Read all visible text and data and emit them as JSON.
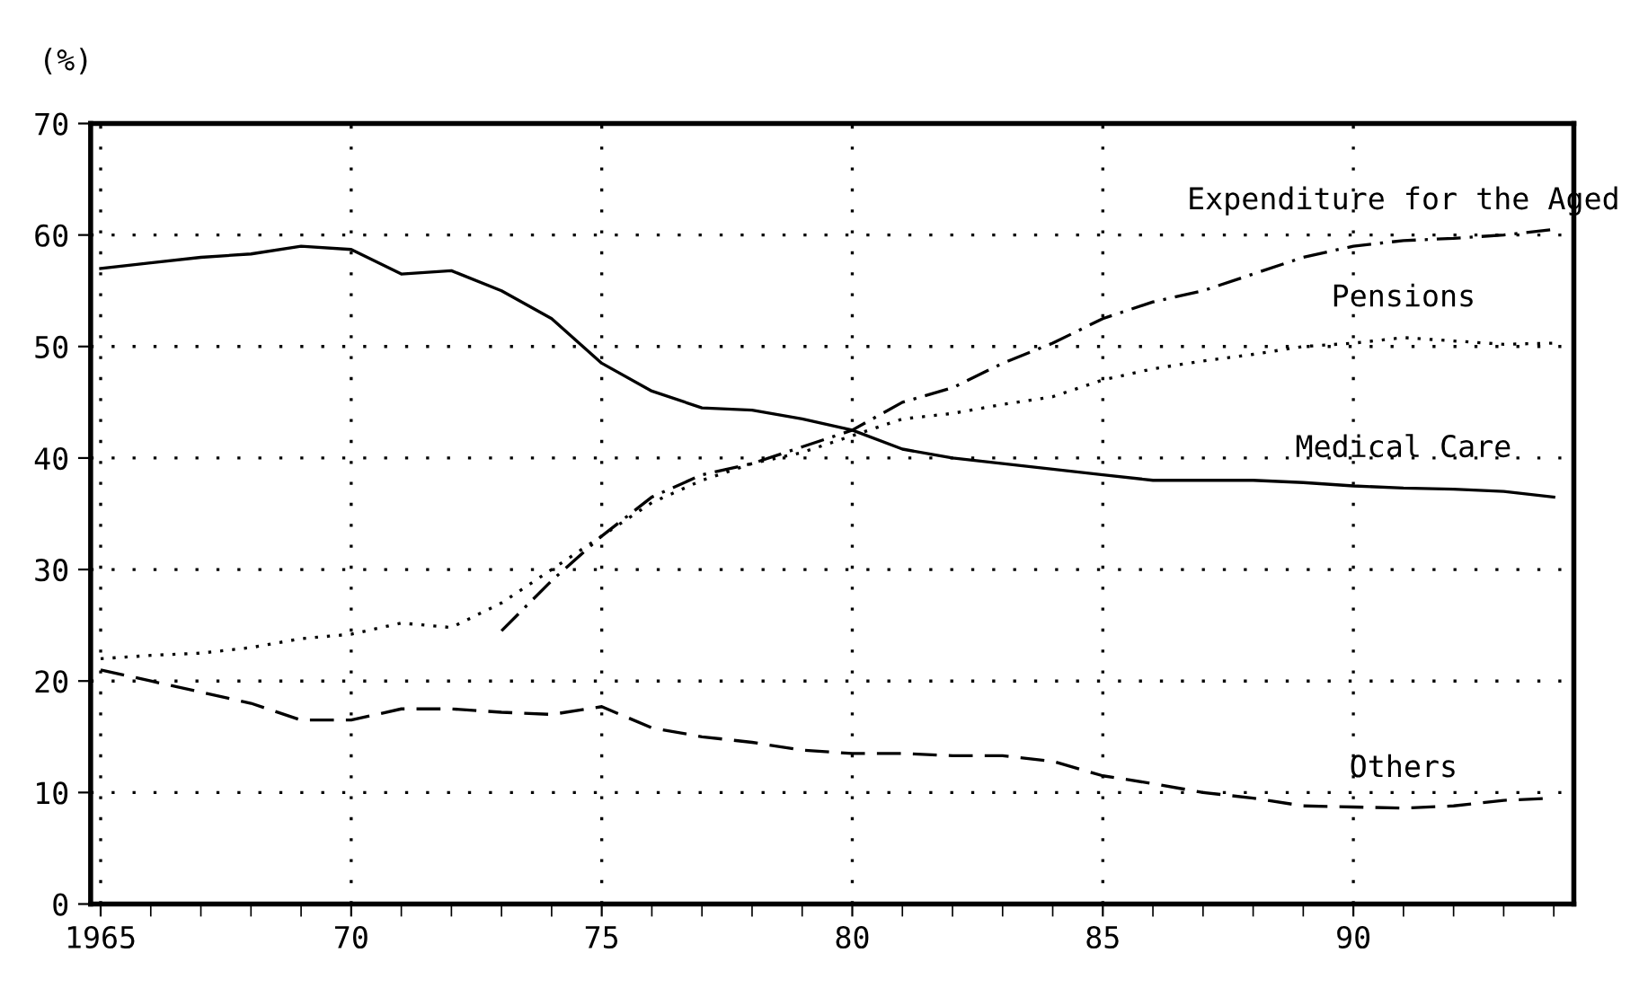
{
  "chart_data": {
    "type": "line",
    "ylabel": "(%)",
    "xlim": [
      1964.8,
      1994.4
    ],
    "ylim": [
      0,
      70
    ],
    "xticks": [
      {
        "value": 1965,
        "label": "1965"
      },
      {
        "value": 1966,
        "label": null
      },
      {
        "value": 1967,
        "label": null
      },
      {
        "value": 1968,
        "label": null
      },
      {
        "value": 1969,
        "label": null
      },
      {
        "value": 1970,
        "label": "70"
      },
      {
        "value": 1971,
        "label": null
      },
      {
        "value": 1972,
        "label": null
      },
      {
        "value": 1973,
        "label": null
      },
      {
        "value": 1974,
        "label": null
      },
      {
        "value": 1975,
        "label": "75"
      },
      {
        "value": 1976,
        "label": null
      },
      {
        "value": 1977,
        "label": null
      },
      {
        "value": 1978,
        "label": null
      },
      {
        "value": 1979,
        "label": null
      },
      {
        "value": 1980,
        "label": "80"
      },
      {
        "value": 1981,
        "label": null
      },
      {
        "value": 1982,
        "label": null
      },
      {
        "value": 1983,
        "label": null
      },
      {
        "value": 1984,
        "label": null
      },
      {
        "value": 1985,
        "label": "85"
      },
      {
        "value": 1986,
        "label": null
      },
      {
        "value": 1987,
        "label": null
      },
      {
        "value": 1988,
        "label": null
      },
      {
        "value": 1989,
        "label": null
      },
      {
        "value": 1990,
        "label": "90"
      },
      {
        "value": 1991,
        "label": null
      },
      {
        "value": 1992,
        "label": null
      },
      {
        "value": 1993,
        "label": null
      },
      {
        "value": 1994,
        "label": null
      }
    ],
    "yticks": [
      0,
      10,
      20,
      30,
      40,
      50,
      60,
      70
    ],
    "grid": true,
    "legend": false,
    "marker": "none",
    "series": [
      {
        "name": "Expenditure for the Aged",
        "color": "#000000",
        "line_style": "dashdot",
        "x": [
          1973,
          1974,
          1975,
          1976,
          1977,
          1978,
          1979,
          1980,
          1981,
          1982,
          1983,
          1984,
          1985,
          1986,
          1987,
          1988,
          1989,
          1990,
          1991,
          1992,
          1993,
          1994
        ],
        "values": [
          24.5,
          29,
          33,
          36.5,
          38.5,
          39.5,
          41,
          42.5,
          45,
          46.3,
          48.5,
          50.3,
          52.5,
          54,
          55,
          56.5,
          58,
          59,
          59.5,
          59.7,
          60,
          60.5
        ]
      },
      {
        "name": "Pensions",
        "color": "#000000",
        "line_style": "dotted",
        "x": [
          1965,
          1966,
          1967,
          1968,
          1969,
          1970,
          1971,
          1972,
          1973,
          1974,
          1975,
          1976,
          1977,
          1978,
          1979,
          1980,
          1981,
          1982,
          1983,
          1984,
          1985,
          1986,
          1987,
          1988,
          1989,
          1990,
          1991,
          1992,
          1993,
          1994
        ],
        "values": [
          22,
          22.3,
          22.5,
          23,
          23.8,
          24.2,
          25.2,
          24.8,
          27,
          30,
          33,
          36,
          38,
          39.5,
          40.5,
          42,
          43.5,
          44,
          44.8,
          45.5,
          47,
          48,
          48.7,
          49.3,
          50,
          50.3,
          50.8,
          50.5,
          50.2,
          50.3
        ]
      },
      {
        "name": "Medical Care",
        "color": "#000000",
        "line_style": "solid",
        "x": [
          1965,
          1966,
          1967,
          1968,
          1969,
          1970,
          1971,
          1972,
          1973,
          1974,
          1975,
          1976,
          1977,
          1978,
          1979,
          1980,
          1981,
          1982,
          1983,
          1984,
          1985,
          1986,
          1987,
          1988,
          1989,
          1990,
          1991,
          1992,
          1993,
          1994
        ],
        "values": [
          57,
          57.5,
          58,
          58.3,
          59,
          58.7,
          56.5,
          56.8,
          55,
          52.5,
          48.5,
          46,
          44.5,
          44.3,
          43.5,
          42.5,
          40.8,
          40,
          39.5,
          39,
          38.5,
          38,
          38,
          38,
          37.8,
          37.5,
          37.3,
          37.2,
          37,
          36.5
        ]
      },
      {
        "name": "Others",
        "color": "#000000",
        "line_style": "dashed",
        "x": [
          1965,
          1966,
          1967,
          1968,
          1969,
          1970,
          1971,
          1972,
          1973,
          1974,
          1975,
          1976,
          1977,
          1978,
          1979,
          1980,
          1981,
          1982,
          1983,
          1984,
          1985,
          1986,
          1987,
          1988,
          1989,
          1990,
          1991,
          1992,
          1993,
          1994
        ],
        "values": [
          21,
          20,
          19,
          18,
          16.5,
          16.5,
          17.5,
          17.5,
          17.2,
          17,
          17.7,
          15.8,
          15,
          14.5,
          13.8,
          13.5,
          13.5,
          13.3,
          13.3,
          12.8,
          11.5,
          10.8,
          10,
          9.5,
          8.8,
          8.7,
          8.6,
          8.8,
          9.3,
          9.5
        ]
      }
    ]
  }
}
